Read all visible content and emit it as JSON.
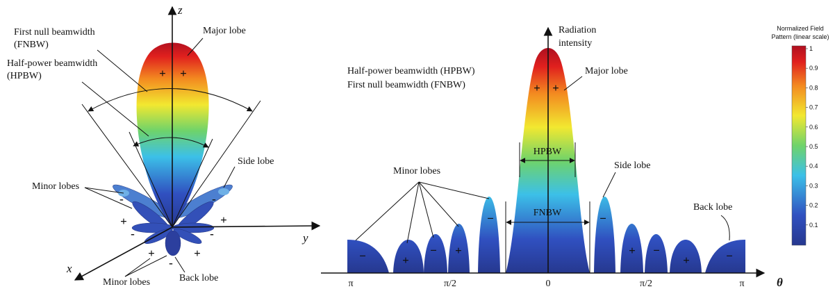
{
  "left": {
    "axis_z": "z",
    "axis_y": "y",
    "axis_x": "x",
    "fnbw_label": [
      "First null beamwidth",
      "(FNBW)"
    ],
    "hpbw_label": [
      "Half-power beamwidth",
      "(HPBW)"
    ],
    "major_lobe": "Major lobe",
    "side_lobe": "Side lobe",
    "minor_lobes_upper": "Minor lobes",
    "minor_lobes_lower": "Minor lobes",
    "back_lobe": "Back lobe",
    "signs": [
      "+",
      "+",
      "-",
      "-",
      "+",
      "-",
      "+",
      "-",
      "+",
      "-",
      "+"
    ]
  },
  "right": {
    "axis_title": [
      "Radiation",
      "intensity"
    ],
    "legend_lines": [
      "Half-power beamwidth (HPBW)",
      "First null beamwidth (FNBW)"
    ],
    "major_lobe": "Major lobe",
    "hpbw": "HPBW",
    "fnbw": "FNBW",
    "minor_lobes": "Minor lobes",
    "side_lobe": "Side lobe",
    "back_lobe": "Back lobe",
    "axis_ticks": [
      "π",
      "π/2",
      "0",
      "π/2",
      "π"
    ],
    "axis_symbol": "θ",
    "signs": [
      "+",
      "+",
      "−",
      "+",
      "−",
      "+",
      "−",
      "−",
      "+",
      "−",
      "+",
      "−"
    ]
  },
  "colorbar": {
    "title": [
      "Normalized Field",
      "Pattern (linear scale)"
    ],
    "ticks": [
      1,
      0.9,
      0.8,
      0.7,
      0.6,
      0.5,
      0.4,
      0.3,
      0.2,
      0.1
    ]
  }
}
